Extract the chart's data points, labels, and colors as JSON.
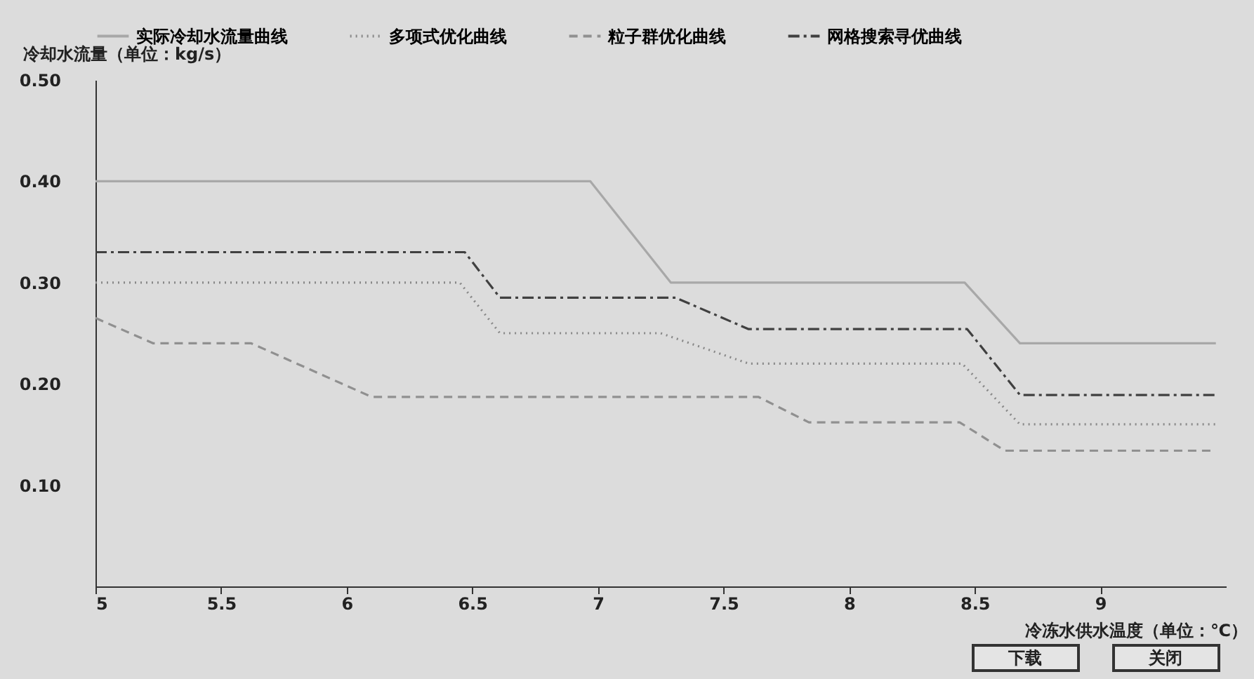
{
  "chart_data": {
    "type": "line",
    "xlabel": "冷冻水供水温度（单位：℃）",
    "ylabel": "冷却水流量（单位：kg/s）",
    "xlim": [
      5,
      9.5
    ],
    "ylim": [
      0,
      0.5
    ],
    "xticks": [
      5,
      5.5,
      6,
      6.5,
      7,
      7.5,
      8,
      8.5,
      9
    ],
    "yticks": [
      {
        "value": 0.1,
        "label": "0.10"
      },
      {
        "value": 0.2,
        "label": "0.20"
      },
      {
        "value": 0.3,
        "label": "0.30"
      },
      {
        "value": 0.4,
        "label": "0.40"
      },
      {
        "value": 0.5,
        "label": "0.50"
      }
    ],
    "grid": false,
    "legend": "top",
    "marker": "none",
    "series": [
      {
        "name": "实际冷却水流量曲线",
        "color": "#a8a8a8",
        "line_style": "solid",
        "x": [
          5,
          6.97,
          7.29,
          8.46,
          8.68,
          9.46
        ],
        "values": [
          0.4,
          0.4,
          0.3,
          0.3,
          0.24,
          0.24
        ]
      },
      {
        "name": "多项式优化曲线",
        "color": "#888888",
        "line_style": "dotted",
        "x": [
          5,
          6.45,
          6.61,
          7.25,
          7.6,
          8.45,
          8.68,
          9.46
        ],
        "values": [
          0.3,
          0.3,
          0.25,
          0.25,
          0.22,
          0.22,
          0.16,
          0.16
        ]
      },
      {
        "name": "粒子群优化曲线",
        "color": "#909090",
        "line_style": "dashed",
        "x": [
          5,
          5.23,
          5.62,
          6.1,
          7.64,
          7.84,
          8.44,
          8.62,
          9.46
        ],
        "values": [
          0.265,
          0.24,
          0.24,
          0.187,
          0.187,
          0.162,
          0.162,
          0.134,
          0.134
        ]
      },
      {
        "name": "网格搜索寻优曲线",
        "color": "#404040",
        "line_style": "dashdot",
        "x": [
          5,
          6.47,
          6.61,
          7.31,
          7.6,
          8.47,
          8.68,
          9.46
        ],
        "values": [
          0.33,
          0.33,
          0.285,
          0.285,
          0.254,
          0.254,
          0.189,
          0.189
        ]
      }
    ],
    "annotations": [
      "下载",
      "关闭"
    ]
  }
}
